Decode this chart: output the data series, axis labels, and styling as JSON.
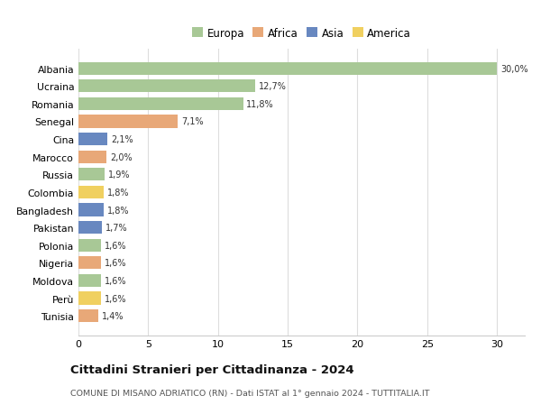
{
  "countries": [
    "Albania",
    "Ucraina",
    "Romania",
    "Senegal",
    "Cina",
    "Marocco",
    "Russia",
    "Colombia",
    "Bangladesh",
    "Pakistan",
    "Polonia",
    "Nigeria",
    "Moldova",
    "Perù",
    "Tunisia"
  ],
  "values": [
    30.0,
    12.7,
    11.8,
    7.1,
    2.1,
    2.0,
    1.9,
    1.8,
    1.8,
    1.7,
    1.6,
    1.6,
    1.6,
    1.6,
    1.4
  ],
  "labels": [
    "30,0%",
    "12,7%",
    "11,8%",
    "7,1%",
    "2,1%",
    "2,0%",
    "1,9%",
    "1,8%",
    "1,8%",
    "1,7%",
    "1,6%",
    "1,6%",
    "1,6%",
    "1,6%",
    "1,4%"
  ],
  "continents": [
    "Europa",
    "Europa",
    "Europa",
    "Africa",
    "Asia",
    "Africa",
    "Europa",
    "America",
    "Asia",
    "Asia",
    "Europa",
    "Africa",
    "Europa",
    "America",
    "Africa"
  ],
  "continent_colors": {
    "Europa": "#a8c896",
    "Africa": "#e8a878",
    "Asia": "#6888c0",
    "America": "#f0d060"
  },
  "legend_order": [
    "Europa",
    "Africa",
    "Asia",
    "America"
  ],
  "title": "Cittadini Stranieri per Cittadinanza - 2024",
  "subtitle": "COMUNE DI MISANO ADRIATICO (RN) - Dati ISTAT al 1° gennaio 2024 - TUTTITALIA.IT",
  "xlim": [
    0,
    32
  ],
  "xticks": [
    0,
    5,
    10,
    15,
    20,
    25,
    30
  ],
  "background_color": "#ffffff",
  "grid_color": "#dddddd",
  "bar_height": 0.72
}
